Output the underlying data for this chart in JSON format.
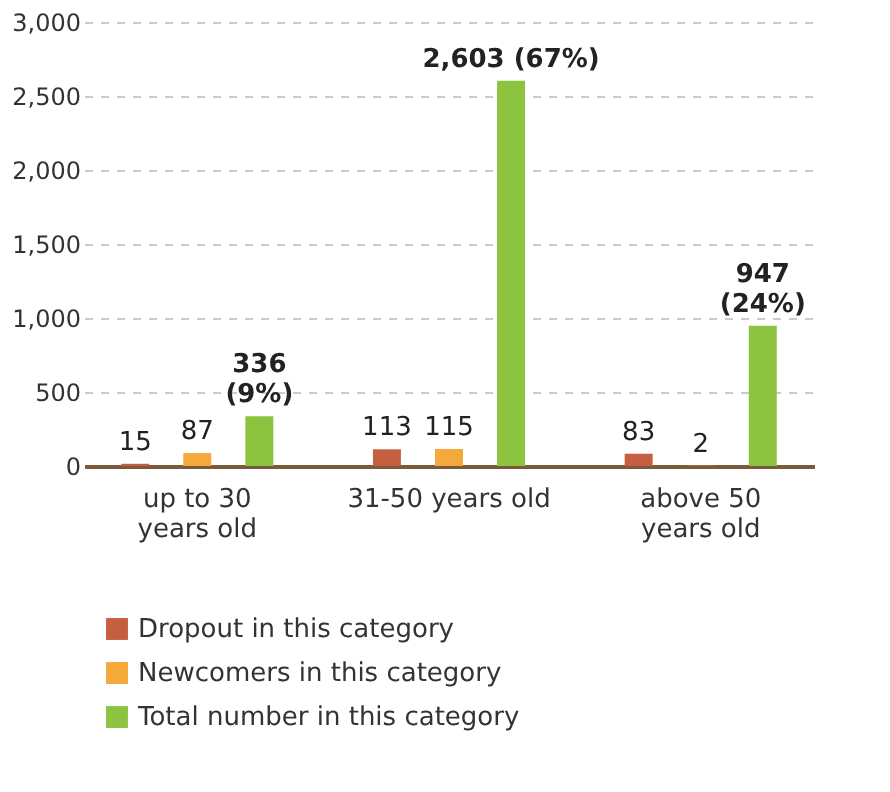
{
  "chart_data": {
    "type": "bar",
    "categories": [
      "up to 30\nyears old",
      "31-50 years old",
      "above 50\nyears old"
    ],
    "series": [
      {
        "name": "Dropout in this category",
        "color": "#c65f42",
        "values": [
          15,
          113,
          83
        ],
        "value_labels": [
          "15",
          "113",
          "83"
        ]
      },
      {
        "name": "Newcomers in this category",
        "color": "#f5a93a",
        "values": [
          87,
          115,
          2
        ],
        "value_labels": [
          "87",
          "115",
          "2"
        ]
      },
      {
        "name": "Total number in this category",
        "color": "#8dc43f",
        "values": [
          336,
          2603,
          947
        ],
        "value_labels": [
          "336\n(9%)",
          "2,603 (67%)",
          "947\n(24%)"
        ]
      }
    ],
    "ylim": [
      0,
      3000
    ],
    "yticks": [
      0,
      500,
      {
        "value": 1000,
        "label": "1,000"
      },
      {
        "value": 1500,
        "label": "1,500"
      },
      {
        "value": 2000,
        "label": "2,000"
      },
      {
        "value": 2500,
        "label": "2,500"
      },
      {
        "value": 3000,
        "label": "3,000"
      }
    ],
    "grid": "y",
    "legend": "bottom left"
  }
}
